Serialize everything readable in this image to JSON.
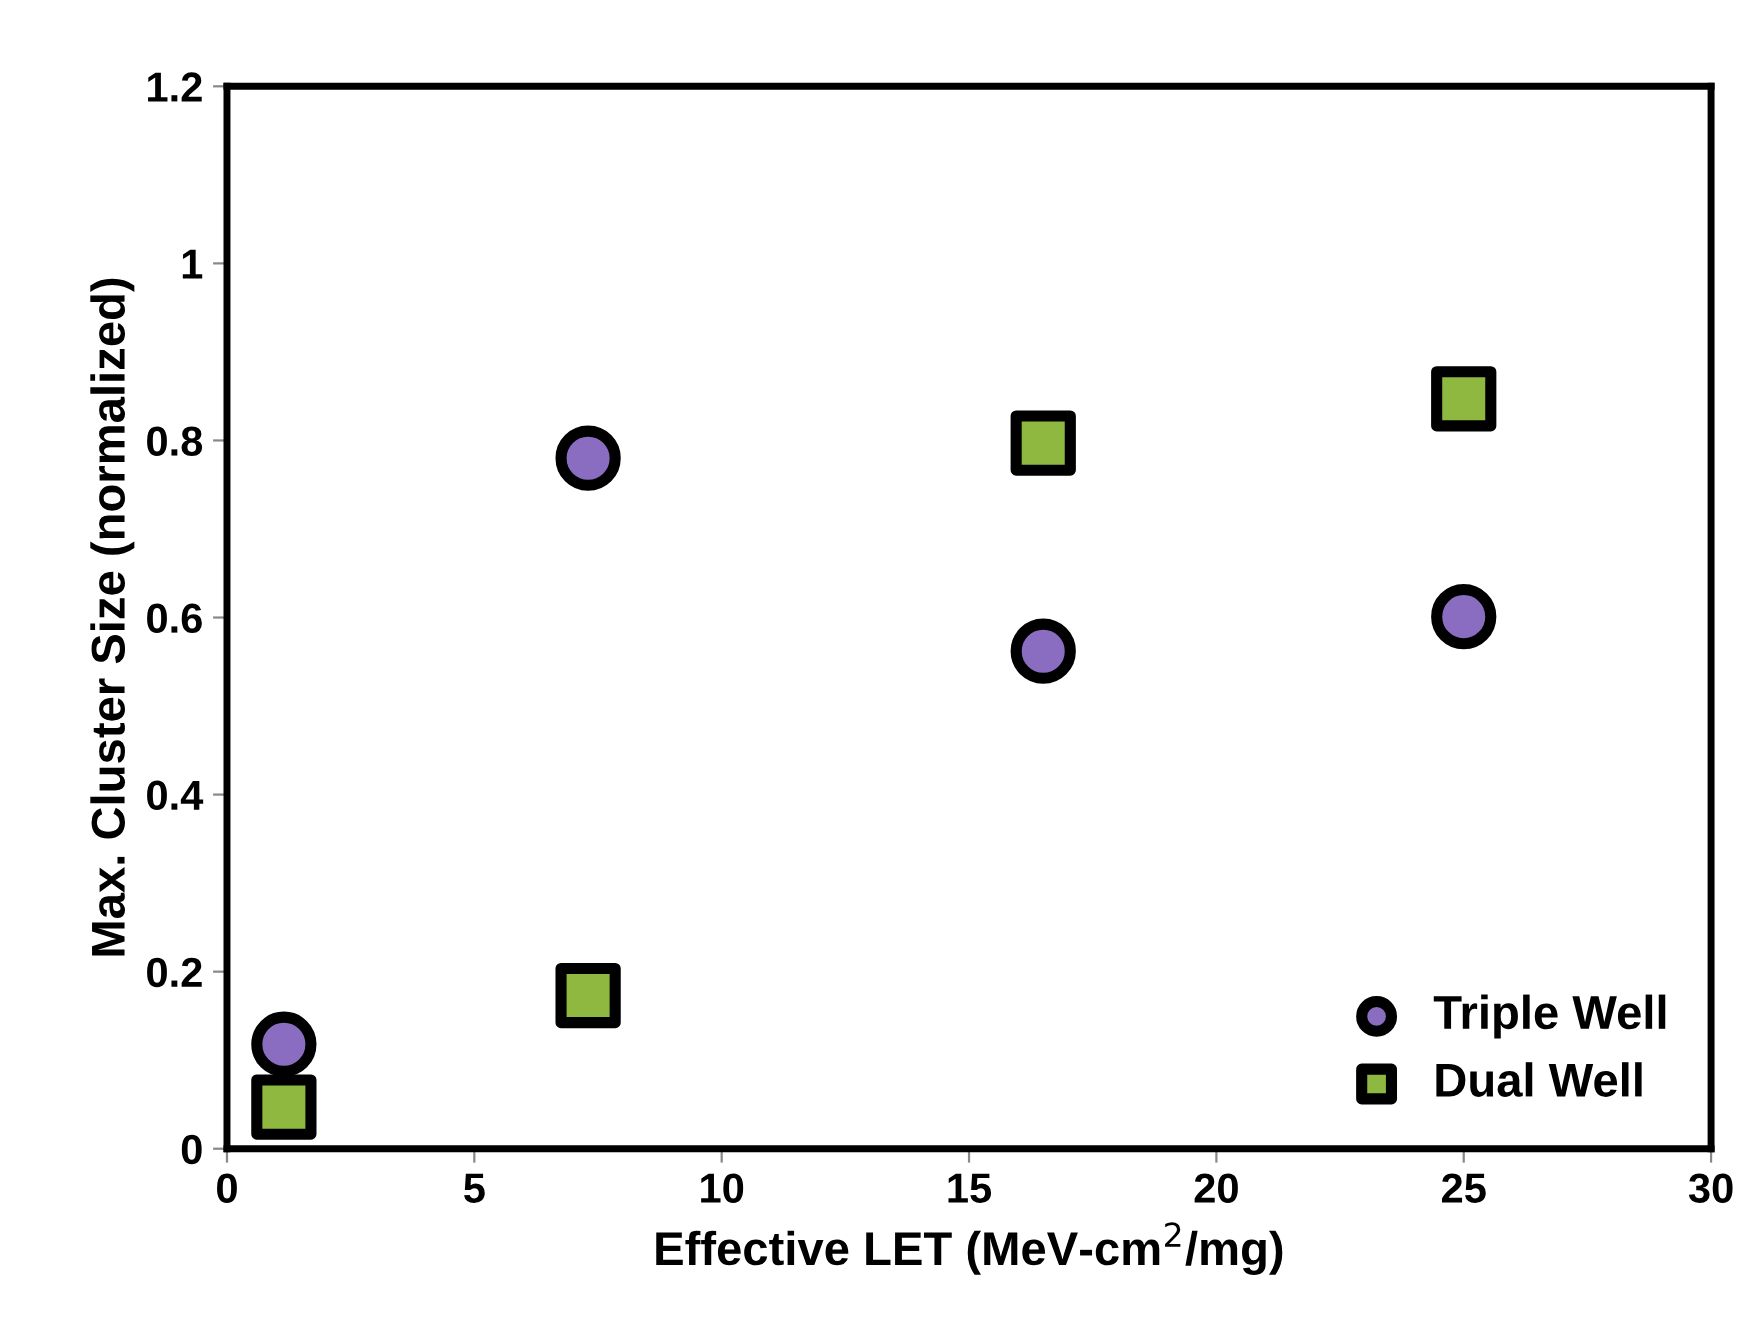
{
  "chart_data": {
    "type": "scatter",
    "xlabel": "Effective LET (MeV-cm$^{2}$/mg)",
    "ylabel": "Max. Cluster Size (normalized)",
    "xlim": [
      0,
      30
    ],
    "xticks": [
      0,
      5,
      10,
      15,
      20,
      25,
      30
    ],
    "ylim": [
      0,
      1.2
    ],
    "yticks": [
      0,
      0.2,
      0.4,
      0.6,
      0.8,
      1,
      1.2
    ],
    "grid": false,
    "legend": "bottom right",
    "series": [
      {
        "name": "Triple Well",
        "color": "#8a6cc0",
        "marker": "circle",
        "x": [
          1.15,
          7.3,
          16.5,
          25
        ],
        "values": [
          0.118,
          0.78,
          0.562,
          0.601
        ]
      },
      {
        "name": "Dual Well",
        "color": "#8fb840",
        "marker": "square",
        "x": [
          1.15,
          7.3,
          16.5,
          25
        ],
        "values": [
          0.047,
          0.173,
          0.797,
          0.847
        ]
      }
    ]
  }
}
